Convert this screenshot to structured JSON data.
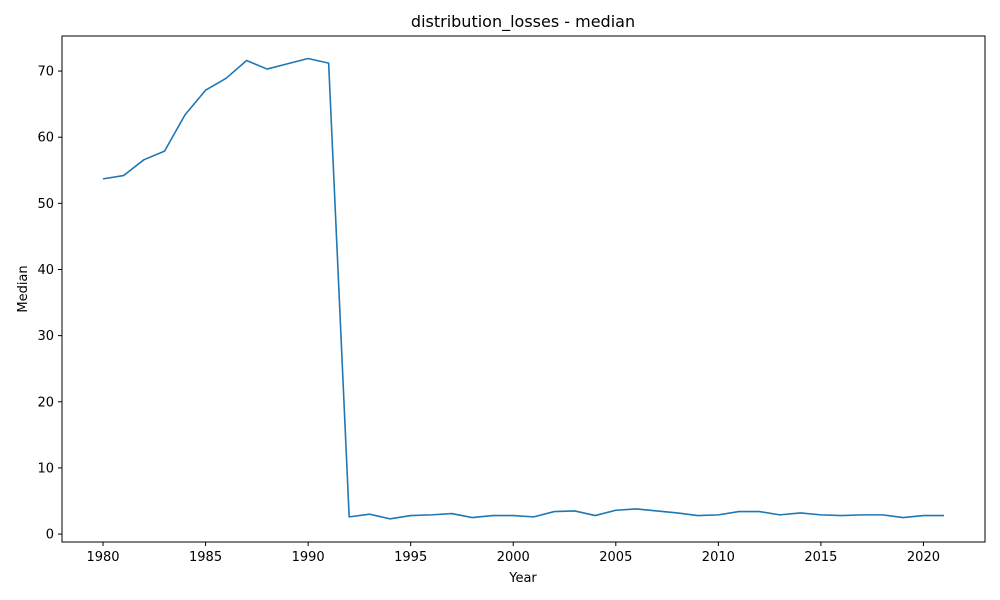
{
  "chart_data": {
    "type": "line",
    "title": "distribution_losses - median",
    "xlabel": "Year",
    "ylabel": "Median",
    "xlim": [
      1978,
      2023
    ],
    "ylim": [
      -1.2,
      75.3
    ],
    "xticks": [
      1980,
      1985,
      1990,
      1995,
      2000,
      2005,
      2010,
      2015,
      2020
    ],
    "yticks": [
      0,
      10,
      20,
      30,
      40,
      50,
      60,
      70
    ],
    "grid": false,
    "series": [
      {
        "color": "#1f77b4",
        "x": [
          1980,
          1981,
          1982,
          1983,
          1984,
          1985,
          1986,
          1987,
          1988,
          1989,
          1990,
          1991,
          1992,
          1993,
          1994,
          1995,
          1996,
          1997,
          1998,
          1999,
          2000,
          2001,
          2002,
          2003,
          2004,
          2005,
          2006,
          2007,
          2008,
          2009,
          2010,
          2011,
          2012,
          2013,
          2014,
          2015,
          2016,
          2017,
          2018,
          2019,
          2020,
          2021
        ],
        "y": [
          53.7,
          54.2,
          56.6,
          57.9,
          63.4,
          67.1,
          68.9,
          71.6,
          70.3,
          71.1,
          71.9,
          71.2,
          2.6,
          3.0,
          2.3,
          2.8,
          2.9,
          3.1,
          2.5,
          2.8,
          2.8,
          2.6,
          3.4,
          3.5,
          2.8,
          3.6,
          3.8,
          3.5,
          3.2,
          2.8,
          2.9,
          3.4,
          3.4,
          2.9,
          3.2,
          2.9,
          2.8,
          2.9,
          2.9,
          2.5,
          2.8,
          2.8
        ]
      }
    ]
  }
}
